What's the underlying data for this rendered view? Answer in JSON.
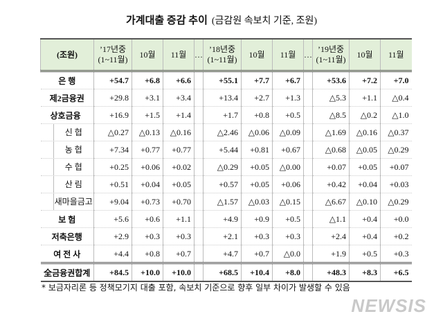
{
  "title": "가계대출 증감 추이",
  "subtitle": "(금감원 속보치 기준, 조원)",
  "table": {
    "header": [
      "(조원)",
      [
        "’17년중",
        "(1~11월)"
      ],
      "10월",
      "11월",
      "…",
      [
        "’18년중",
        "(1~11월)"
      ],
      "10월",
      "11월",
      "…",
      [
        "’19년중",
        "(1~11월)"
      ],
      "10월",
      "11월"
    ],
    "rows": [
      {
        "label": "은 행",
        "values": [
          "+54.7",
          "+6.8",
          "+6.6",
          "+55.1",
          "+7.7",
          "+6.7",
          "+53.6",
          "+7.2",
          "+7.0"
        ]
      },
      {
        "label": "제2금융권",
        "values": [
          "+29.8",
          "+3.1",
          "+3.4",
          "+13.4",
          "+2.7",
          "+1.3",
          "△5.3",
          "+1.1",
          "△0.4"
        ]
      },
      {
        "label": "상호금융",
        "values": [
          "+16.9",
          "+1.5",
          "+1.4",
          "+1.7",
          "+0.8",
          "+0.5",
          "△8.5",
          "△0.2",
          "△1.0"
        ]
      },
      {
        "label": "신 협",
        "values": [
          "△0.27",
          "△0.13",
          "△0.16",
          "△2.46",
          "△0.06",
          "△0.09",
          "△1.69",
          "△0.16",
          "△0.37"
        ]
      },
      {
        "label": "농 협",
        "values": [
          "+7.34",
          "+0.77",
          "+0.77",
          "+5.44",
          "+0.81",
          "+0.67",
          "△0.68",
          "△0.05",
          "△0.29"
        ]
      },
      {
        "label": "수 협",
        "values": [
          "+0.25",
          "+0.06",
          "+0.02",
          "△0.29",
          "+0.05",
          "△0.00",
          "+0.07",
          "+0.05",
          "+0.07"
        ]
      },
      {
        "label": "산 림",
        "values": [
          "+0.51",
          "+0.04",
          "+0.05",
          "+0.57",
          "+0.05",
          "+0.06",
          "+0.42",
          "+0.04",
          "+0.03"
        ]
      },
      {
        "label": "새마을금고",
        "values": [
          "+9.04",
          "+0.73",
          "+0.70",
          "△1.57",
          "△0.03",
          "△0.15",
          "△6.67",
          "△0.10",
          "△0.29"
        ]
      },
      {
        "label": "보 험",
        "values": [
          "+5.6",
          "+0.6",
          "+1.1",
          "+4.9",
          "+0.9",
          "+0.5",
          "△1.1",
          "+0.4",
          "+0.0"
        ]
      },
      {
        "label": "저축은행",
        "values": [
          "+2.9",
          "+0.3",
          "+0.3",
          "+2.1",
          "+0.3",
          "+0.3",
          "+2.4",
          "+0.4",
          "+0.2"
        ]
      },
      {
        "label": "여 전 사",
        "values": [
          "+4.4",
          "+0.8",
          "+0.7",
          "+4.7",
          "+0.7",
          "△0.0",
          "+1.9",
          "+0.5",
          "+0.3"
        ]
      },
      {
        "label": "全금융권합계",
        "values": [
          "+84.5",
          "+10.0",
          "+10.0",
          "+68.5",
          "+10.4",
          "+8.0",
          "+48.3",
          "+8.3",
          "+6.5"
        ]
      }
    ]
  },
  "footnote": "* 보금자리론 등 정책모기지 대출 포함, 속보치 기준으로 향후 일부 차이가 발생할 수 있음",
  "watermark": "NEWSIS"
}
